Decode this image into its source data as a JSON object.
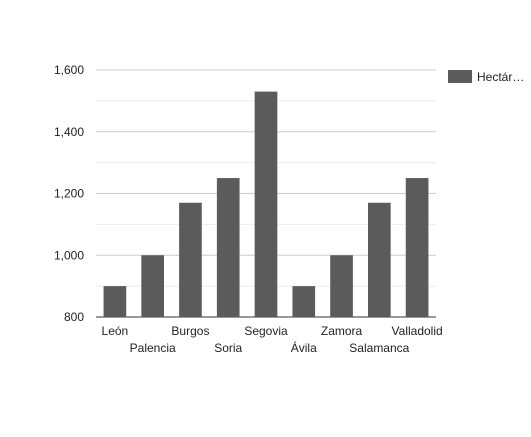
{
  "chart_data": {
    "type": "bar",
    "categories": [
      "León",
      "Palencia",
      "Burgos",
      "Soria",
      "Segovia",
      "Ávila",
      "Zamora",
      "Salamanca",
      "Valladolid"
    ],
    "series": [
      {
        "name": "Hectár…",
        "values": [
          900,
          1000,
          1170,
          1250,
          1530,
          900,
          1000,
          1170,
          1250
        ]
      }
    ],
    "ylim": [
      800,
      1600
    ],
    "yticks": [
      800,
      1000,
      1200,
      1400,
      1600
    ],
    "ytick_labels": [
      "800",
      "1,000",
      "1,200",
      "1,400",
      "1,600"
    ],
    "minor_gridlines": true,
    "legend_position": "right",
    "bar_color": "#5b5b5b",
    "grid_color": "#cccccc",
    "minor_grid_color": "#ebebeb"
  }
}
